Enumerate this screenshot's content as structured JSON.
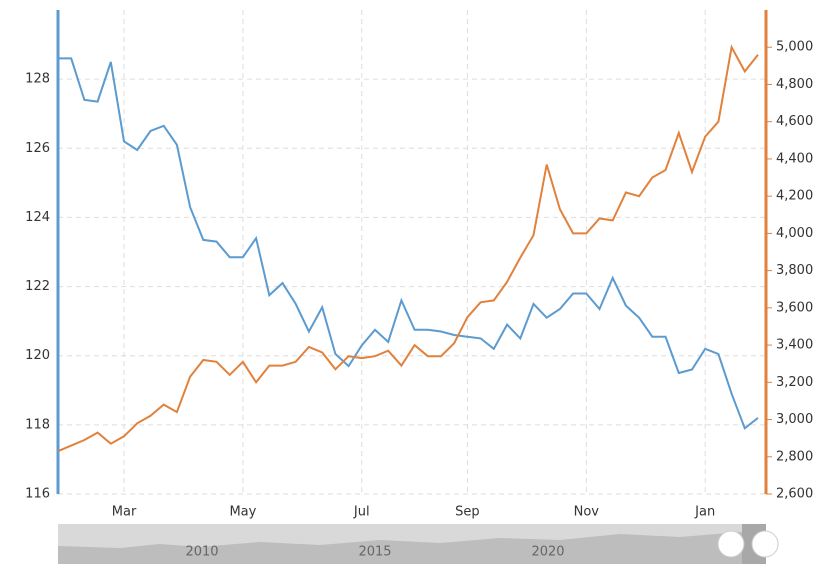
{
  "chart_data": {
    "type": "line",
    "categories": [
      null,
      null,
      null,
      null,
      null,
      "Mar",
      null,
      null,
      null,
      null,
      null,
      null,
      null,
      null,
      "May",
      null,
      null,
      null,
      null,
      null,
      null,
      null,
      null,
      "Jul",
      null,
      null,
      null,
      null,
      null,
      null,
      null,
      "Sep",
      null,
      null,
      null,
      null,
      null,
      null,
      null,
      null,
      "Nov",
      null,
      null,
      null,
      null,
      null,
      null,
      null,
      null,
      "Jan",
      null,
      null,
      null,
      null
    ],
    "series": [
      {
        "color": "#5b9bd0",
        "values": [
          128.6,
          128.6,
          127.4,
          127.35,
          128.5,
          126.2,
          125.95,
          126.5,
          126.65,
          126.1,
          124.3,
          123.35,
          123.3,
          122.85,
          122.85,
          123.4,
          121.75,
          122.1,
          121.5,
          120.7,
          121.4,
          120.05,
          119.7,
          120.3,
          120.75,
          120.4,
          121.6,
          120.75,
          120.75,
          120.7,
          120.6,
          120.55,
          120.5,
          120.2,
          120.9,
          120.5,
          121.5,
          121.1,
          121.35,
          121.8,
          121.8,
          121.35,
          122.25,
          121.45,
          121.1,
          120.55,
          120.55,
          119.5,
          119.6,
          120.2,
          120.05,
          118.9,
          117.9,
          118.2
        ]
      },
      {
        "color": "#e0823d",
        "axis": "y2",
        "values": [
          2830,
          2860,
          2890,
          2930,
          2870,
          2910,
          2980,
          3020,
          3080,
          3040,
          3230,
          3320,
          3310,
          3240,
          3310,
          3200,
          3290,
          3290,
          3310,
          3390,
          3360,
          3270,
          3340,
          3330,
          3340,
          3370,
          3290,
          3400,
          3340,
          3340,
          3410,
          3550,
          3630,
          3640,
          3740,
          3870,
          3990,
          4370,
          4130,
          4000,
          4000,
          4080,
          4070,
          4220,
          4200,
          4300,
          4340,
          4540,
          4330,
          4520,
          4600,
          5000,
          4870,
          4960
        ]
      }
    ],
    "ylim": [
      116,
      130
    ],
    "yticks": [
      116,
      118,
      120,
      122,
      124,
      126,
      128
    ],
    "y2lim": [
      2600,
      5200
    ],
    "y2ticks": [
      {
        "value": 2600,
        "label": "2,600"
      },
      {
        "value": 2800,
        "label": "2,800"
      },
      {
        "value": 3000,
        "label": "3,000"
      },
      {
        "value": 3200,
        "label": "3,200"
      },
      {
        "value": 3400,
        "label": "3,400"
      },
      {
        "value": 3600,
        "label": "3,600"
      },
      {
        "value": 3800,
        "label": "3,800"
      },
      {
        "value": 4000,
        "label": "4,000"
      },
      {
        "value": 4200,
        "label": "4,200"
      },
      {
        "value": 4400,
        "label": "4,400"
      },
      {
        "value": 4600,
        "label": "4,600"
      },
      {
        "value": 4800,
        "label": "4,800"
      },
      {
        "value": 5000,
        "label": "5,000"
      }
    ],
    "grid": true
  },
  "navigator": {
    "labels": [
      "2010",
      "2015",
      "2020"
    ]
  }
}
